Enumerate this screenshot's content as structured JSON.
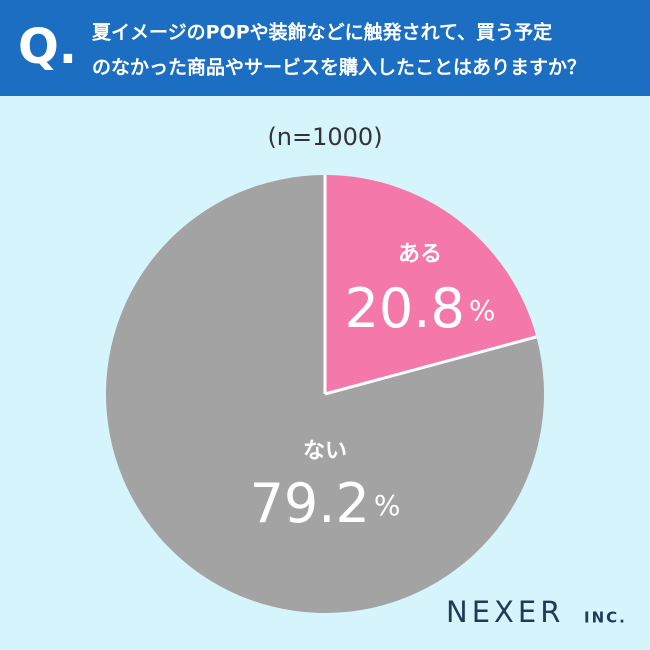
{
  "chart_data": {
    "type": "pie",
    "question_mark": "Q.",
    "title": [
      "夏イメージのPOPや装飾などに触発されて、買う予定",
      "のなかった商品やサービスを購入したことはありますか？"
    ],
    "subtitle": "(n=1000)",
    "categories": [
      "ある",
      "ない"
    ],
    "values": [
      20.8,
      79.2
    ],
    "value_labels": [
      "20.8%",
      "79.2%"
    ],
    "colors": [
      "#f478a9",
      "#a3a3a3"
    ],
    "logo": "NEXER",
    "logo_suffix": "INC."
  }
}
